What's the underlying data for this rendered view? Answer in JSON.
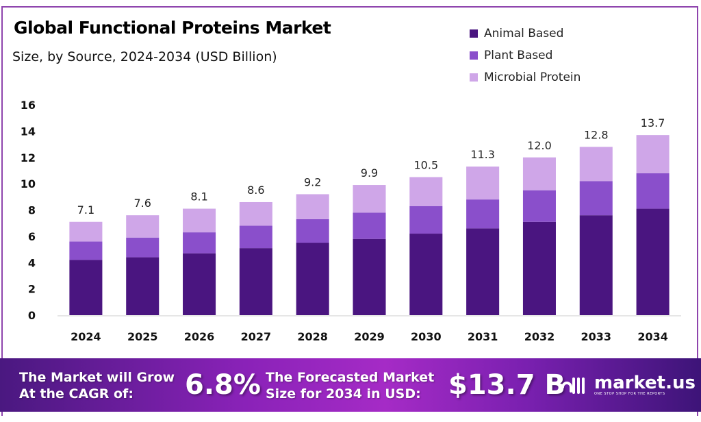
{
  "chart_data": {
    "type": "bar",
    "stacked": true,
    "title": "Global Functional Proteins Market",
    "subtitle": "Size, by Source, 2024-2034 (USD Billion)",
    "xlabel": "",
    "ylabel": "",
    "ylim": [
      0,
      16
    ],
    "yticks": [
      "0",
      "2",
      "4",
      "6",
      "8",
      "10",
      "12",
      "14",
      "16"
    ],
    "grid": false,
    "legend_position": "top-right",
    "categories": [
      "2024",
      "2025",
      "2026",
      "2027",
      "2028",
      "2029",
      "2030",
      "2031",
      "2032",
      "2033",
      "2034"
    ],
    "series": [
      {
        "name": "Animal Based",
        "color": "#4a1580",
        "values": [
          4.2,
          4.4,
          4.7,
          5.1,
          5.5,
          5.8,
          6.2,
          6.6,
          7.1,
          7.6,
          8.1
        ]
      },
      {
        "name": "Plant Based",
        "color": "#8a4fcb",
        "values": [
          1.4,
          1.5,
          1.6,
          1.7,
          1.8,
          2.0,
          2.1,
          2.2,
          2.4,
          2.6,
          2.7
        ]
      },
      {
        "name": "Microbial Protein",
        "color": "#cfa6e8",
        "values": [
          1.5,
          1.7,
          1.8,
          1.8,
          1.9,
          2.1,
          2.2,
          2.5,
          2.5,
          2.6,
          2.9
        ]
      }
    ],
    "totals": [
      "7.1",
      "7.6",
      "8.1",
      "8.6",
      "9.2",
      "9.9",
      "10.5",
      "11.3",
      "12.0",
      "12.8",
      "13.7"
    ]
  },
  "banner": {
    "cagr_label_line1": "The Market will Grow",
    "cagr_label_line2": "At the CAGR of:",
    "cagr_value": "6.8%",
    "forecast_label_line1": "The Forecasted Market",
    "forecast_label_line2": "Size for 2034 in USD:",
    "forecast_value": "$13.7 B",
    "logo_text": "market.us",
    "logo_tagline": "ONE STOP SHOP FOR THE REPORTS"
  }
}
